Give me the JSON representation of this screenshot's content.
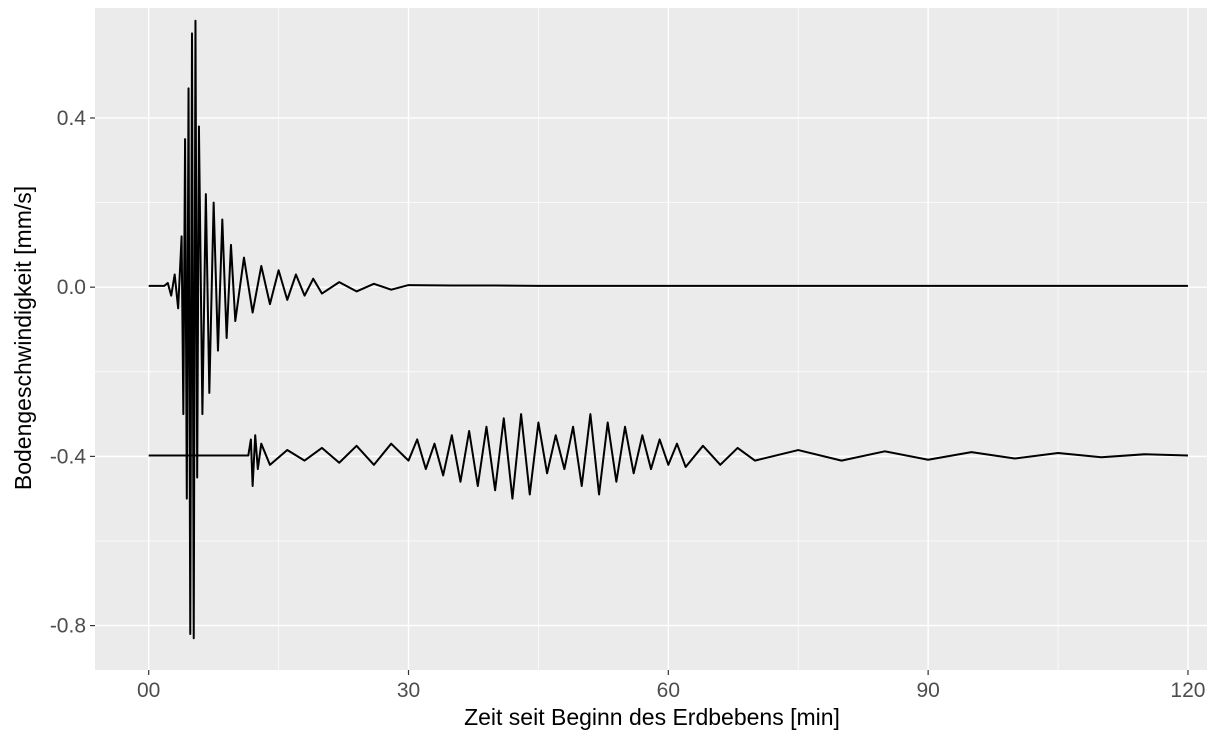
{
  "chart_data": {
    "type": "line",
    "title": "",
    "xlabel": "Zeit seit Beginn des Erdbebens [min]",
    "ylabel": "Bodengeschwindigkeit [mm/s]",
    "xlim": [
      -6.2,
      122.2
    ],
    "ylim": [
      -0.905,
      0.66
    ],
    "x_ticks": [
      0,
      30,
      60,
      90,
      120
    ],
    "x_tick_labels": [
      "00",
      "30",
      "60",
      "90",
      "120"
    ],
    "y_ticks": [
      -0.8,
      -0.4,
      0.0,
      0.4
    ],
    "y_tick_labels": [
      "-0.8",
      "-0.4",
      "0.0",
      "0.4"
    ],
    "grid": true,
    "legend": "none",
    "colors": {
      "panel": "#ebebeb",
      "grid": "#ffffff",
      "line": "#000000",
      "tick_text": "#4d4d4d"
    },
    "series": [
      {
        "x": [
          0,
          1.8,
          2.2,
          2.6,
          3.0,
          3.4,
          3.8,
          4.0,
          4.2,
          4.4,
          4.6,
          4.8,
          5.0,
          5.2,
          5.4,
          5.6,
          5.8,
          6.2,
          6.6,
          7.0,
          7.5,
          8.0,
          8.5,
          9.0,
          9.5,
          10.0,
          11.0,
          12.0,
          13.0,
          14.0,
          15.0,
          16.0,
          17.0,
          18.0,
          19.0,
          20.0,
          22.0,
          24.0,
          26.0,
          28.0,
          30.0,
          35.0,
          40.0,
          45.0,
          50.0,
          60.0,
          70.0,
          80.0,
          90.0,
          100.0,
          110.0,
          120.0
        ],
        "y": [
          0.003,
          0.003,
          0.01,
          -0.02,
          0.03,
          -0.05,
          0.12,
          -0.3,
          0.35,
          -0.5,
          0.47,
          -0.82,
          0.6,
          -0.83,
          0.63,
          -0.45,
          0.38,
          -0.3,
          0.22,
          -0.25,
          0.2,
          -0.15,
          0.16,
          -0.12,
          0.1,
          -0.08,
          0.07,
          -0.06,
          0.05,
          -0.04,
          0.04,
          -0.03,
          0.03,
          -0.02,
          0.02,
          -0.015,
          0.012,
          -0.01,
          0.008,
          -0.006,
          0.005,
          0.004,
          0.004,
          0.003,
          0.003,
          0.003,
          0.003,
          0.003,
          0.003,
          0.003,
          0.003,
          0.003
        ]
      },
      {
        "x": [
          0,
          11.5,
          11.8,
          12.0,
          12.3,
          12.6,
          13.0,
          14.0,
          16.0,
          18.0,
          20.0,
          22.0,
          24.0,
          26.0,
          28.0,
          30.0,
          31.0,
          32.0,
          33.0,
          34.0,
          35.0,
          36.0,
          37.0,
          38.0,
          39.0,
          40.0,
          41.0,
          42.0,
          43.0,
          44.0,
          45.0,
          46.0,
          47.0,
          48.0,
          49.0,
          50.0,
          51.0,
          52.0,
          53.0,
          54.0,
          55.0,
          56.0,
          57.0,
          58.0,
          59.0,
          60.0,
          61.0,
          62.0,
          64.0,
          66.0,
          68.0,
          70.0,
          75.0,
          80.0,
          85.0,
          90.0,
          95.0,
          100.0,
          105.0,
          110.0,
          115.0,
          120.0
        ],
        "y": [
          -0.398,
          -0.398,
          -0.36,
          -0.47,
          -0.35,
          -0.43,
          -0.37,
          -0.42,
          -0.385,
          -0.41,
          -0.38,
          -0.415,
          -0.375,
          -0.42,
          -0.37,
          -0.41,
          -0.36,
          -0.43,
          -0.37,
          -0.445,
          -0.35,
          -0.46,
          -0.34,
          -0.47,
          -0.33,
          -0.48,
          -0.31,
          -0.5,
          -0.3,
          -0.49,
          -0.32,
          -0.44,
          -0.35,
          -0.43,
          -0.33,
          -0.47,
          -0.3,
          -0.49,
          -0.32,
          -0.46,
          -0.33,
          -0.44,
          -0.35,
          -0.43,
          -0.36,
          -0.42,
          -0.37,
          -0.425,
          -0.375,
          -0.42,
          -0.38,
          -0.41,
          -0.385,
          -0.41,
          -0.388,
          -0.408,
          -0.39,
          -0.405,
          -0.392,
          -0.402,
          -0.395,
          -0.398
        ]
      }
    ]
  }
}
